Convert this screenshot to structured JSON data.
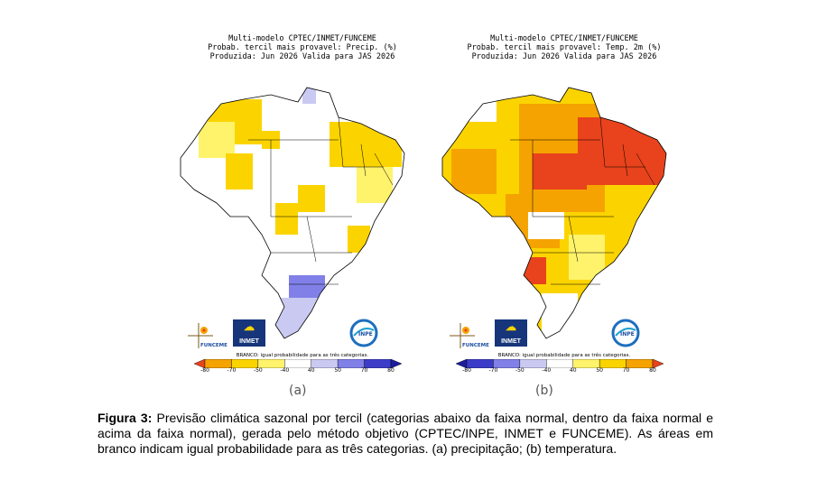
{
  "panel_a": {
    "title_line1": "Multi-modelo CPTEC/INMET/FUNCEME",
    "title_line2": "Probab. tercil mais provavel: Precip. (%)",
    "title_line3": "Produzida: Jun 2026   Valida para JAS 2026",
    "legend_note": "BRANCO: igual probabilidade para as três categorias.",
    "ticks": [
      "-80",
      "-70",
      "-50",
      "-40",
      "40",
      "50",
      "70",
      "80"
    ],
    "colors": [
      "#e8431c",
      "#f5a300",
      "#fbd400",
      "#fff36b",
      "#ffffff",
      "#c9c9f2",
      "#8080e8",
      "#3c3cc8",
      "#1d1d9c"
    ],
    "label": "(a)",
    "logos": {
      "funceme": "FUNCEME",
      "inmet": "INMET",
      "inpe": "INPE"
    }
  },
  "panel_b": {
    "title_line1": "Multi-modelo CPTEC/INMET/FUNCEME",
    "title_line2": "Probab. tercil mais provavel: Temp. 2m (%)",
    "title_line3": "Produzida: Jun 2026   Valida para JAS 2026",
    "legend_note": "BRANCO: igual probabilidade para as três categorias.",
    "ticks": [
      "-80",
      "-70",
      "-50",
      "-40",
      "40",
      "50",
      "70",
      "80"
    ],
    "colors": [
      "#1d1d9c",
      "#3c3cc8",
      "#8080e8",
      "#c9c9f2",
      "#ffffff",
      "#fff36b",
      "#fbd400",
      "#f5a300",
      "#e8431c"
    ],
    "label": "(b)",
    "logos": {
      "funceme": "FUNCEME",
      "inmet": "INMET",
      "inpe": "INPE"
    }
  },
  "caption": {
    "prefix": "Figura 3:",
    "text": "Previsão climática sazonal por tercil (categorias abaixo da faixa normal, dentro da faixa normal e acima da faixa normal), gerada pelo método objetivo (CPTEC/INPE, INMET e FUNCEME). As áreas em branco indicam igual probabilidade para as três categorias. (a) precipitação; (b) temperatura."
  }
}
